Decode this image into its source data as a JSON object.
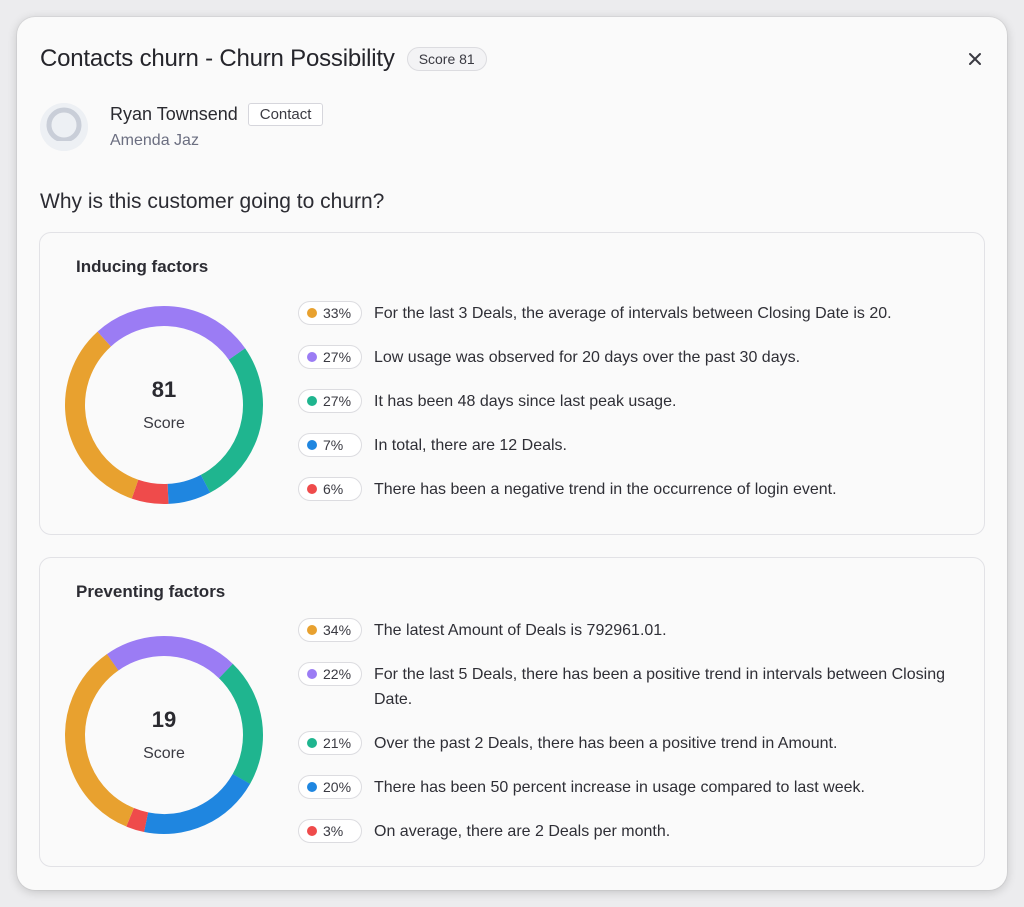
{
  "dialog": {
    "title": "Contacts churn - Churn Possibility",
    "score_badge": "Score 81"
  },
  "contact": {
    "name": "Ryan Townsend",
    "tag": "Contact",
    "subtitle": "Amenda Jaz"
  },
  "question": "Why is this customer going to churn?",
  "colors": {
    "orange": "#e8a12f",
    "purple": "#9b7cf4",
    "green": "#1fb58f",
    "blue": "#1f86e0",
    "red": "#ef4b4b"
  },
  "inducing": {
    "title": "Inducing factors",
    "score_value": "81",
    "score_label": "Score",
    "factors": [
      {
        "pct": "33%",
        "color": "orange",
        "text": "For the last 3 Deals, the average of intervals between Closing Date is 20."
      },
      {
        "pct": "27%",
        "color": "purple",
        "text": "Low usage was observed for 20 days over the past 30 days."
      },
      {
        "pct": "27%",
        "color": "green",
        "text": "It has been 48 days since last peak usage."
      },
      {
        "pct": "7%",
        "color": "blue",
        "text": "In total, there are 12 Deals."
      },
      {
        "pct": "6%",
        "color": "red",
        "text": "There has been a negative trend in the occurrence of login event."
      }
    ]
  },
  "preventing": {
    "title": "Preventing factors",
    "score_value": "19",
    "score_label": "Score",
    "factors": [
      {
        "pct": "34%",
        "color": "orange",
        "text": "The latest Amount of Deals is 792961.01."
      },
      {
        "pct": "22%",
        "color": "purple",
        "text": "For the last 5 Deals, there has been a positive trend in intervals between Closing Date."
      },
      {
        "pct": "21%",
        "color": "green",
        "text": "Over the past 2 Deals, there has been a positive trend in Amount."
      },
      {
        "pct": "20%",
        "color": "blue",
        "text": "There has been 50 percent increase in usage compared to last week."
      },
      {
        "pct": "3%",
        "color": "red",
        "text": "On average, there are 2 Deals per month."
      }
    ]
  }
}
